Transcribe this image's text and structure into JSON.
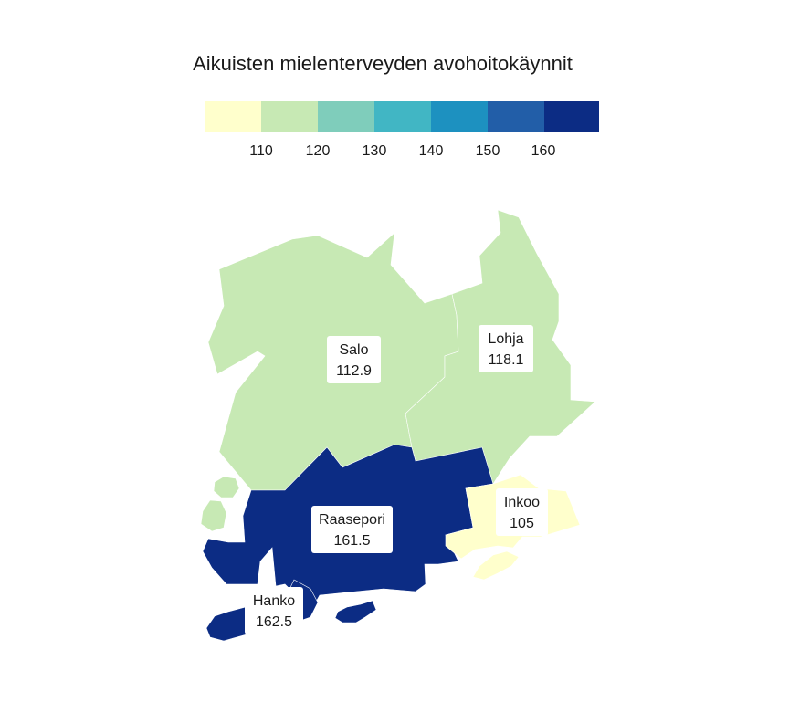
{
  "title": "Aikuisten mielenterveyden avohoitokäynnit",
  "legend": {
    "colors": [
      "#ffffcc",
      "#c7e9b4",
      "#7fcdbb",
      "#41b6c4",
      "#1d91c0",
      "#225ea8",
      "#0c2c84"
    ],
    "ticks": [
      "110",
      "120",
      "130",
      "140",
      "150",
      "160"
    ]
  },
  "municipalities": [
    {
      "name": "Salo",
      "value": "112.9",
      "color": "#c7e9b4"
    },
    {
      "name": "Lohja",
      "value": "118.1",
      "color": "#c7e9b4"
    },
    {
      "name": "Raasepori",
      "value": "161.5",
      "color": "#0c2c84"
    },
    {
      "name": "Inkoo",
      "value": "105",
      "color": "#ffffcc"
    },
    {
      "name": "Hanko",
      "value": "162.5",
      "color": "#0c2c84"
    }
  ]
}
